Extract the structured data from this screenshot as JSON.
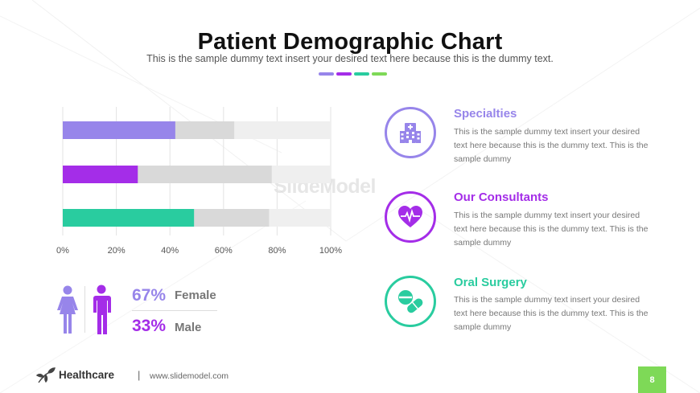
{
  "slide": {
    "title": "Patient Demographic Chart",
    "subtitle": "This is the sample dummy text insert your desired text here because this is the dummy text.",
    "accent_dashes": [
      "#9785ea",
      "#a42de8",
      "#29cc9f",
      "#7ed957"
    ]
  },
  "chart_data": {
    "type": "bar",
    "orientation": "horizontal",
    "x_ticks": [
      "0%",
      "20%",
      "40%",
      "60%",
      "80%",
      "100%"
    ],
    "xlim": [
      0,
      100
    ],
    "rows": [
      {
        "value": 42,
        "secondary": 64,
        "color": "#9785ea"
      },
      {
        "value": 28,
        "secondary": 78,
        "color": "#a42de8"
      },
      {
        "value": 49,
        "secondary": 77,
        "color": "#29cc9f"
      }
    ],
    "secondary_color": "#d9d9d9",
    "track_color": "#efefef",
    "grid": true
  },
  "gender": {
    "female_pct": "67%",
    "female_label": "Female",
    "female_color": "#9785ea",
    "male_pct": "33%",
    "male_label": "Male",
    "male_color": "#a42de8"
  },
  "features": [
    {
      "title": "Specialties",
      "text": "This is the sample dummy text insert your desired text here because this is the dummy text. This is the sample dummy",
      "color": "#9785ea",
      "icon": "hospital-icon"
    },
    {
      "title": "Our Consultants",
      "text": "This is the sample dummy text insert your desired text here because this is the dummy text. This is the sample dummy",
      "color": "#a42de8",
      "icon": "heartbeat-icon"
    },
    {
      "title": "Oral Surgery",
      "text": "This is the sample dummy text insert your desired text here because this is the dummy text. This is the sample dummy",
      "color": "#29cc9f",
      "icon": "pills-icon"
    }
  ],
  "footer": {
    "brand": "Healthcare",
    "separator": "|",
    "url": "www.slidemodel.com",
    "page_number": "8",
    "page_color": "#7ed957"
  },
  "watermark": {
    "text": "SlideModel"
  }
}
